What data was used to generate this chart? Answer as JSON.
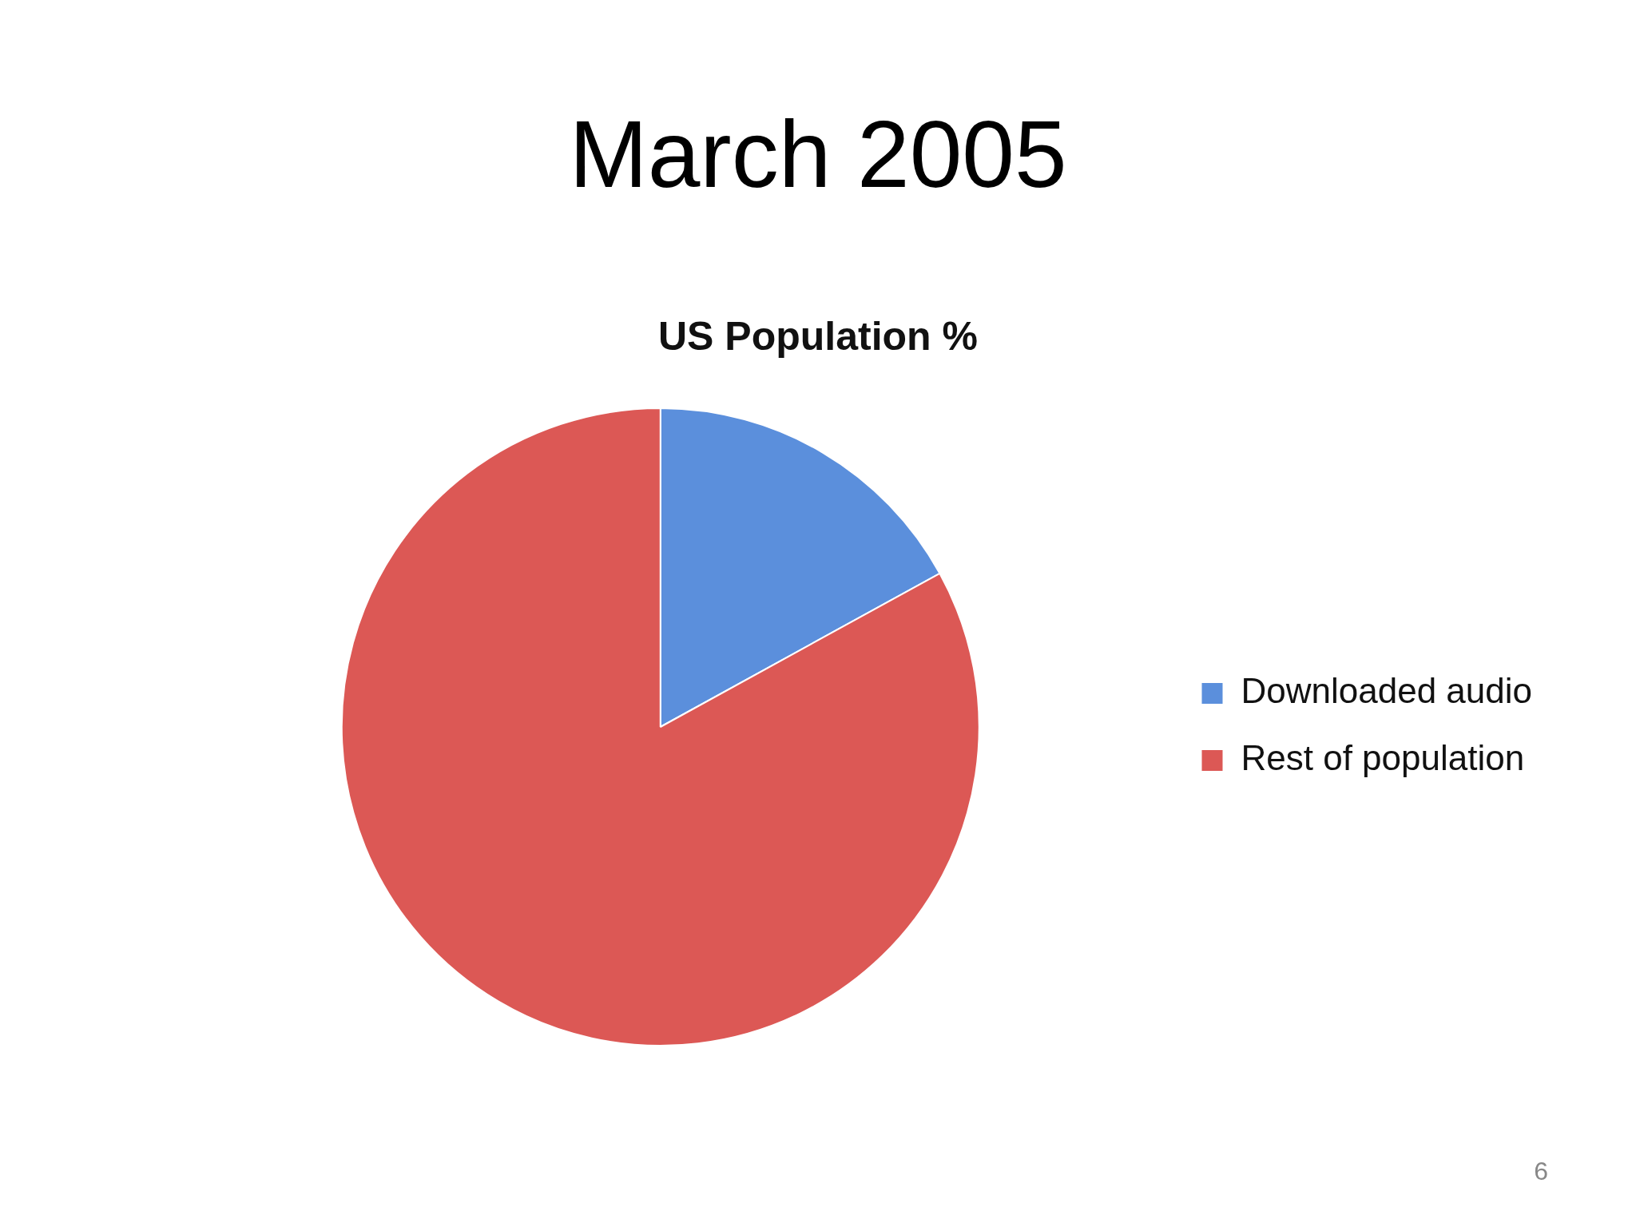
{
  "chart_data": {
    "type": "pie",
    "title": "March 2005",
    "subtitle": "US Population %",
    "categories": [
      "Downloaded audio",
      "Rest of population"
    ],
    "values": [
      17,
      83
    ],
    "colors": [
      "#5b8fdc",
      "#dc5855"
    ],
    "legend": "right",
    "annotations": [
      "6"
    ]
  }
}
